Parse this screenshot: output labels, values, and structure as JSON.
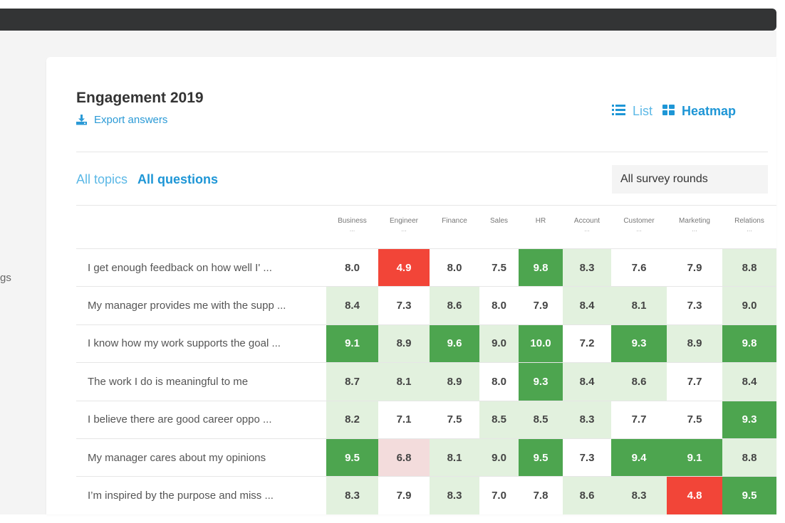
{
  "sidebar": {
    "fragment": "gs"
  },
  "header": {
    "title": "Engagement 2019",
    "export_label": "Export answers"
  },
  "view_toggle": {
    "list_label": "List",
    "heatmap_label": "Heatmap",
    "active": "Heatmap"
  },
  "tabs": {
    "topics_label": "All topics",
    "questions_label": "All questions",
    "active": "All questions"
  },
  "filter": {
    "rounds_value": "All survey rounds"
  },
  "colors": {
    "accent": "#1e96d6",
    "accent_light": "#5cb8e6",
    "cell_white": "#ffffff",
    "cell_light_green": "#e2f1de",
    "cell_dark_green": "#4da54f",
    "cell_red": "#f24538",
    "cell_pink": "#f3dcdc"
  },
  "heatmap": {
    "columns": [
      {
        "label": "Business",
        "ellipsis": "..."
      },
      {
        "label": "Engineer",
        "ellipsis": "..."
      },
      {
        "label": "Finance",
        "ellipsis": ""
      },
      {
        "label": "Sales",
        "ellipsis": ""
      },
      {
        "label": "HR",
        "ellipsis": ""
      },
      {
        "label": "Account",
        "ellipsis": "..."
      },
      {
        "label": "Customer",
        "ellipsis": "..."
      },
      {
        "label": "Marketing",
        "ellipsis": "..."
      },
      {
        "label": "Relations",
        "ellipsis": "..."
      }
    ],
    "rows": [
      {
        "question": "I get enough feedback on how well I' ...",
        "cells": [
          [
            "8.0",
            "white"
          ],
          [
            "4.9",
            "red"
          ],
          [
            "8.0",
            "white"
          ],
          [
            "7.5",
            "white"
          ],
          [
            "9.8",
            "dark"
          ],
          [
            "8.3",
            "light"
          ],
          [
            "7.6",
            "white"
          ],
          [
            "7.9",
            "white"
          ],
          [
            "8.8",
            "light"
          ]
        ]
      },
      {
        "question": "My manager provides me with the supp ...",
        "cells": [
          [
            "8.4",
            "light"
          ],
          [
            "7.3",
            "white"
          ],
          [
            "8.6",
            "light"
          ],
          [
            "8.0",
            "white"
          ],
          [
            "7.9",
            "white"
          ],
          [
            "8.4",
            "light"
          ],
          [
            "8.1",
            "light"
          ],
          [
            "7.3",
            "white"
          ],
          [
            "9.0",
            "light"
          ]
        ]
      },
      {
        "question": "I know how my work supports the goal ...",
        "cells": [
          [
            "9.1",
            "dark"
          ],
          [
            "8.9",
            "light"
          ],
          [
            "9.6",
            "dark"
          ],
          [
            "9.0",
            "light"
          ],
          [
            "10.0",
            "dark"
          ],
          [
            "7.2",
            "white"
          ],
          [
            "9.3",
            "dark"
          ],
          [
            "8.9",
            "light"
          ],
          [
            "9.8",
            "dark"
          ]
        ]
      },
      {
        "question": "The work I do is meaningful to me",
        "cells": [
          [
            "8.7",
            "light"
          ],
          [
            "8.1",
            "light"
          ],
          [
            "8.9",
            "light"
          ],
          [
            "8.0",
            "white"
          ],
          [
            "9.3",
            "dark"
          ],
          [
            "8.4",
            "light"
          ],
          [
            "8.6",
            "light"
          ],
          [
            "7.7",
            "white"
          ],
          [
            "8.4",
            "light"
          ]
        ]
      },
      {
        "question": "I believe there are good career oppo ...",
        "cells": [
          [
            "8.2",
            "light"
          ],
          [
            "7.1",
            "white"
          ],
          [
            "7.5",
            "white"
          ],
          [
            "8.5",
            "light"
          ],
          [
            "8.5",
            "light"
          ],
          [
            "8.3",
            "light"
          ],
          [
            "7.7",
            "white"
          ],
          [
            "7.5",
            "white"
          ],
          [
            "9.3",
            "dark"
          ]
        ]
      },
      {
        "question": "My manager cares about my opinions",
        "cells": [
          [
            "9.5",
            "dark"
          ],
          [
            "6.8",
            "pink"
          ],
          [
            "8.1",
            "light"
          ],
          [
            "9.0",
            "light"
          ],
          [
            "9.5",
            "dark"
          ],
          [
            "7.3",
            "white"
          ],
          [
            "9.4",
            "dark"
          ],
          [
            "9.1",
            "dark"
          ],
          [
            "8.8",
            "light"
          ]
        ]
      },
      {
        "question": "I’m inspired by the purpose and miss ...",
        "cells": [
          [
            "8.3",
            "light"
          ],
          [
            "7.9",
            "white"
          ],
          [
            "8.3",
            "light"
          ],
          [
            "7.0",
            "white"
          ],
          [
            "7.8",
            "white"
          ],
          [
            "8.6",
            "light"
          ],
          [
            "8.3",
            "light"
          ],
          [
            "4.8",
            "red"
          ],
          [
            "9.5",
            "dark"
          ]
        ]
      }
    ]
  }
}
